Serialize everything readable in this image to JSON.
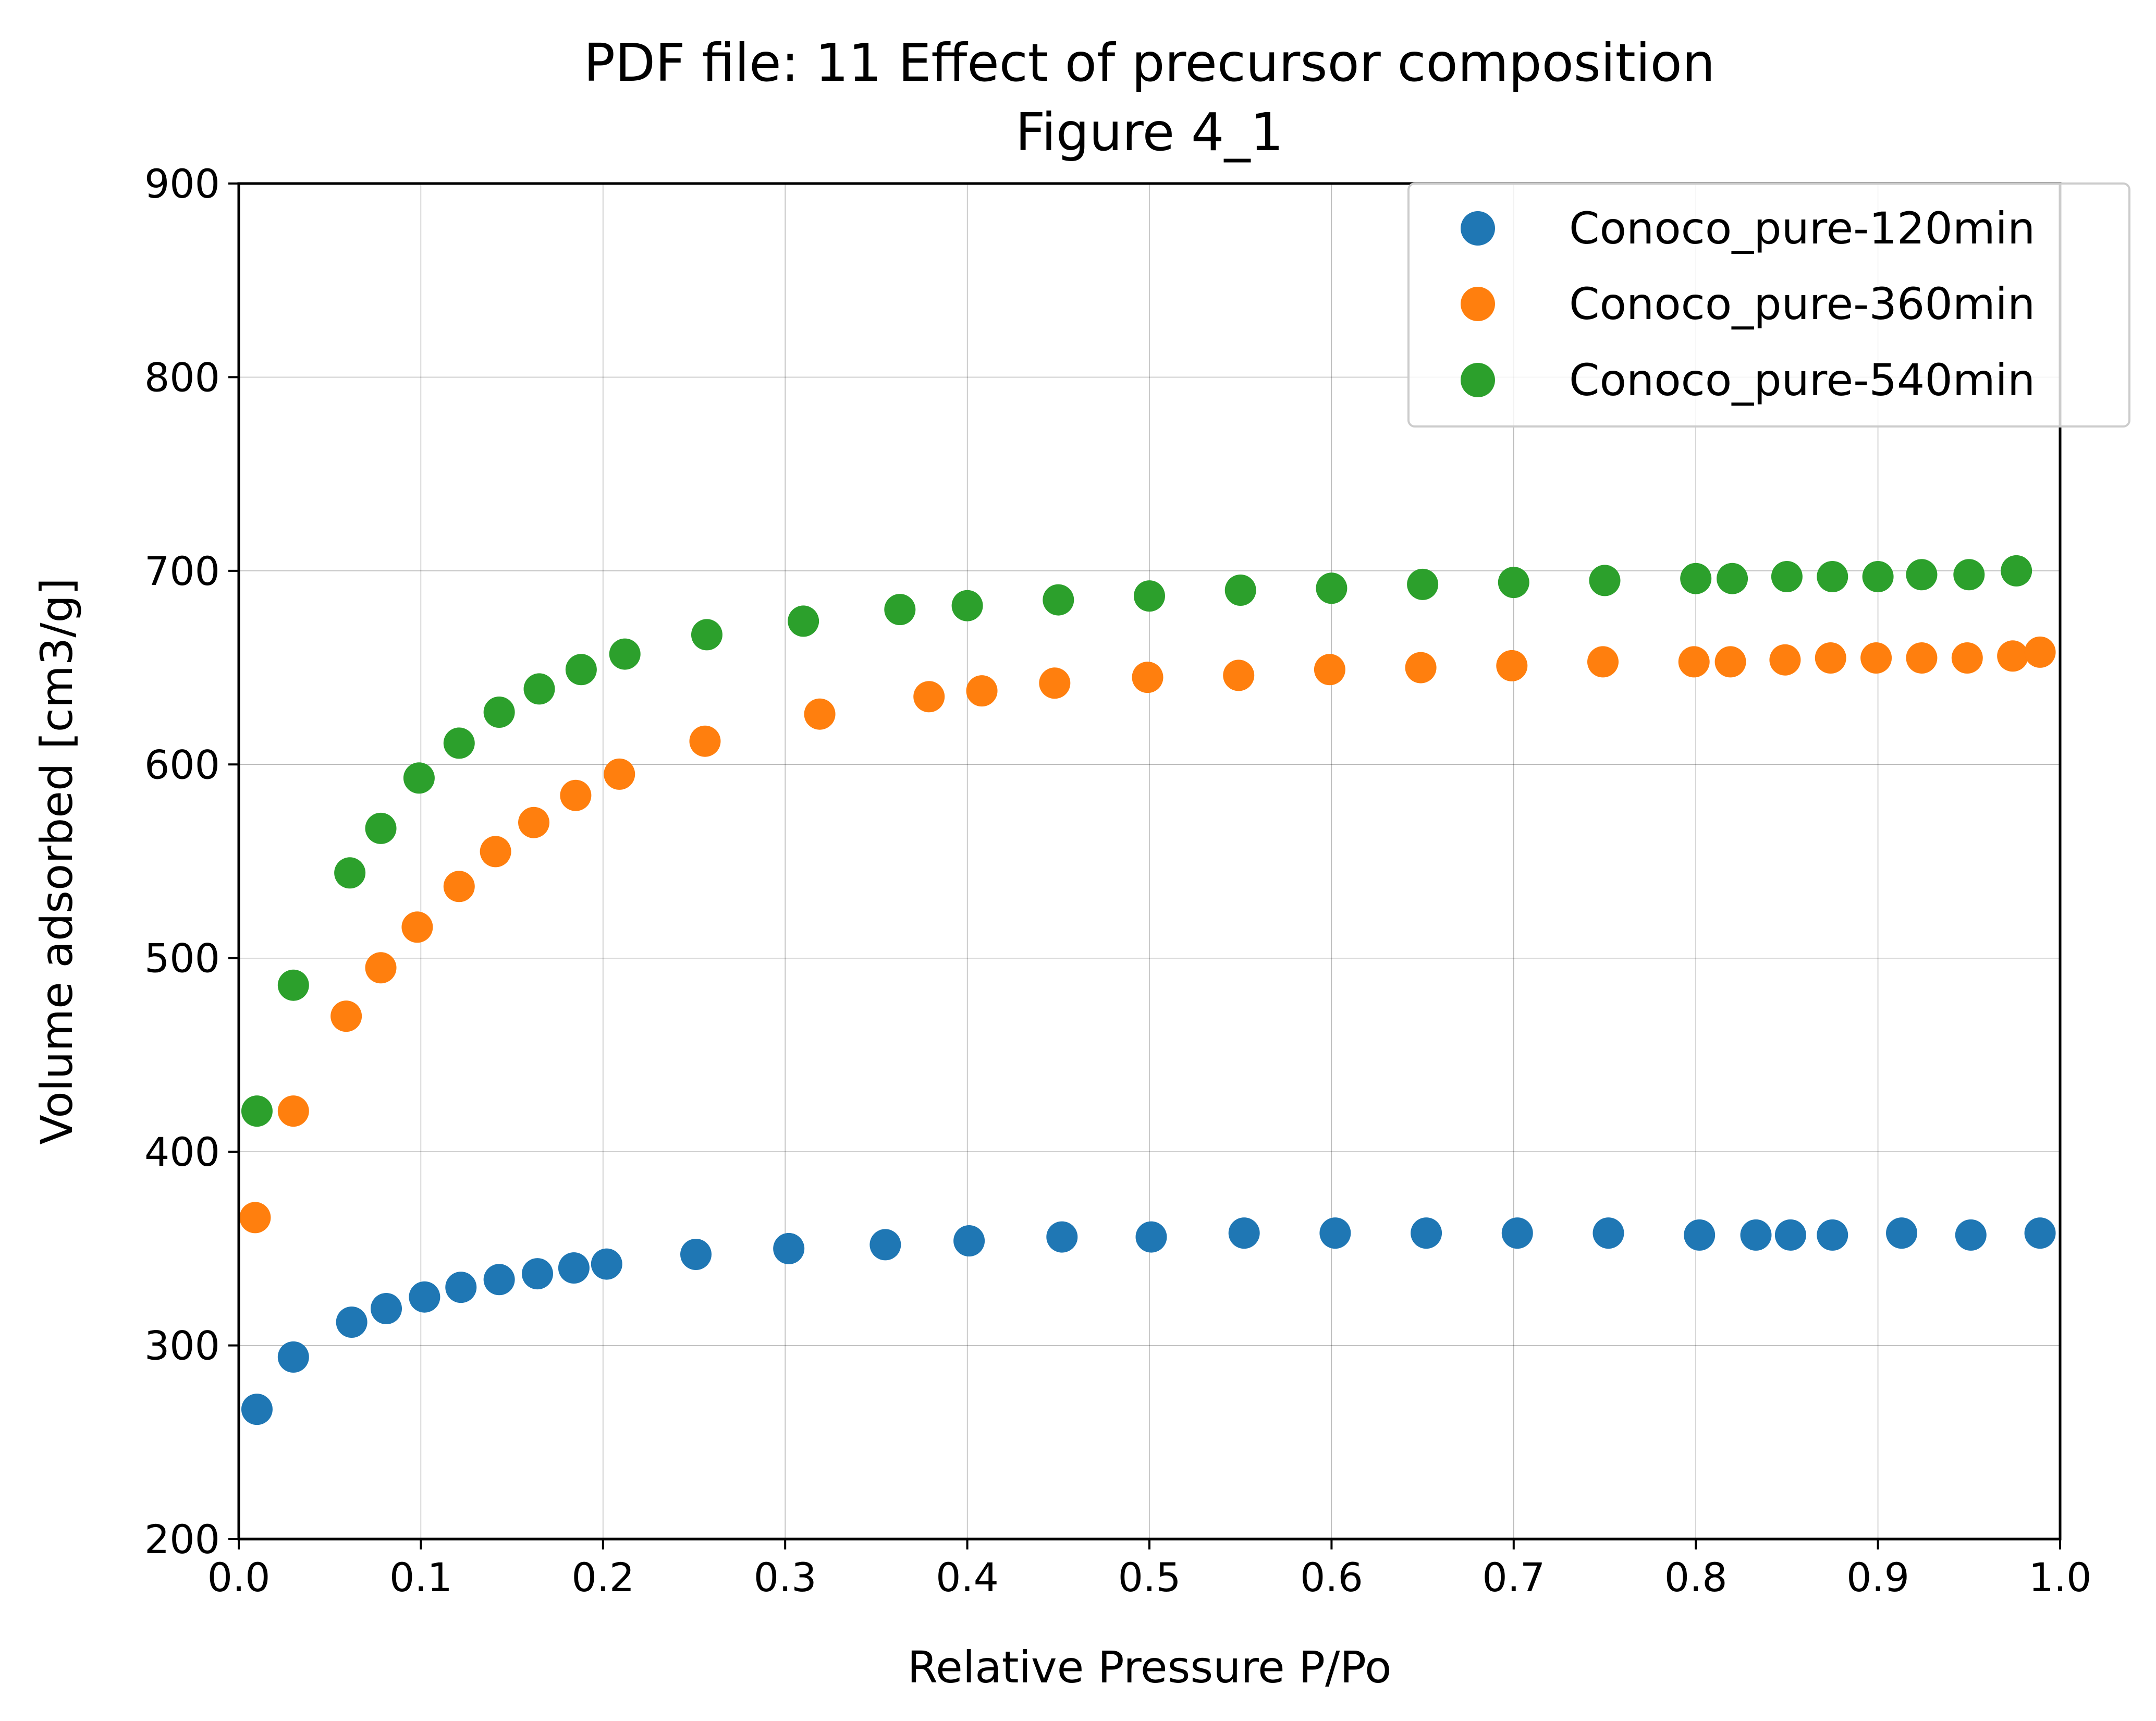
{
  "chart_data": {
    "type": "scatter",
    "title": "PDF file: 11 Effect of precursor composition",
    "subtitle": "Figure 4_1",
    "xlabel": "Relative Pressure P/Po",
    "ylabel": "Volume adsorbed [cm3/g]",
    "xlim": [
      0.0,
      1.0
    ],
    "ylim": [
      200,
      900
    ],
    "xticks": [
      "0.0",
      "0.1",
      "0.2",
      "0.3",
      "0.4",
      "0.5",
      "0.6",
      "0.7",
      "0.8",
      "0.9",
      "1.0"
    ],
    "yticks": [
      "200",
      "300",
      "400",
      "500",
      "600",
      "700",
      "800",
      "900"
    ],
    "grid": true,
    "legend_position": "top-right",
    "series": [
      {
        "name": "Conoco_pure-120min",
        "color": "#1f77b4",
        "x": [
          0.01,
          0.03,
          0.062,
          0.081,
          0.102,
          0.122,
          0.143,
          0.164,
          0.184,
          0.202,
          0.251,
          0.302,
          0.355,
          0.401,
          0.452,
          0.501,
          0.552,
          0.602,
          0.652,
          0.702,
          0.752,
          0.802,
          0.833,
          0.852,
          0.875,
          0.913,
          0.951,
          0.989
        ],
        "y": [
          267,
          294,
          312,
          319,
          325,
          330,
          334,
          337,
          340,
          342,
          347,
          350,
          352,
          354,
          356,
          356,
          358,
          358,
          358,
          358,
          358,
          357,
          357,
          357,
          357,
          358,
          357,
          358
        ]
      },
      {
        "name": "Conoco_pure-360min",
        "color": "#ff7f0e",
        "x": [
          0.009,
          0.03,
          0.059,
          0.078,
          0.098,
          0.121,
          0.141,
          0.162,
          0.185,
          0.209,
          0.256,
          0.319,
          0.379,
          0.408,
          0.448,
          0.499,
          0.549,
          0.599,
          0.649,
          0.699,
          0.749,
          0.799,
          0.819,
          0.849,
          0.874,
          0.899,
          0.924,
          0.949,
          0.974,
          0.989
        ],
        "y": [
          366,
          421,
          470,
          495,
          516,
          537,
          555,
          570,
          584,
          595,
          612,
          626,
          635,
          638,
          642,
          645,
          646,
          649,
          650,
          651,
          653,
          653,
          653,
          654,
          655,
          655,
          655,
          655,
          656,
          658
        ]
      },
      {
        "name": "Conoco_pure-540min",
        "color": "#2ca02c",
        "x": [
          0.01,
          0.03,
          0.061,
          0.078,
          0.099,
          0.121,
          0.143,
          0.165,
          0.188,
          0.212,
          0.257,
          0.31,
          0.363,
          0.4,
          0.45,
          0.5,
          0.55,
          0.6,
          0.65,
          0.7,
          0.75,
          0.8,
          0.82,
          0.85,
          0.875,
          0.9,
          0.924,
          0.95,
          0.976
        ],
        "y": [
          421,
          486,
          544,
          567,
          593,
          611,
          627,
          639,
          649,
          657,
          667,
          674,
          680,
          682,
          685,
          687,
          690,
          691,
          693,
          694,
          695,
          696,
          696,
          697,
          697,
          697,
          698,
          698,
          700
        ]
      }
    ]
  }
}
